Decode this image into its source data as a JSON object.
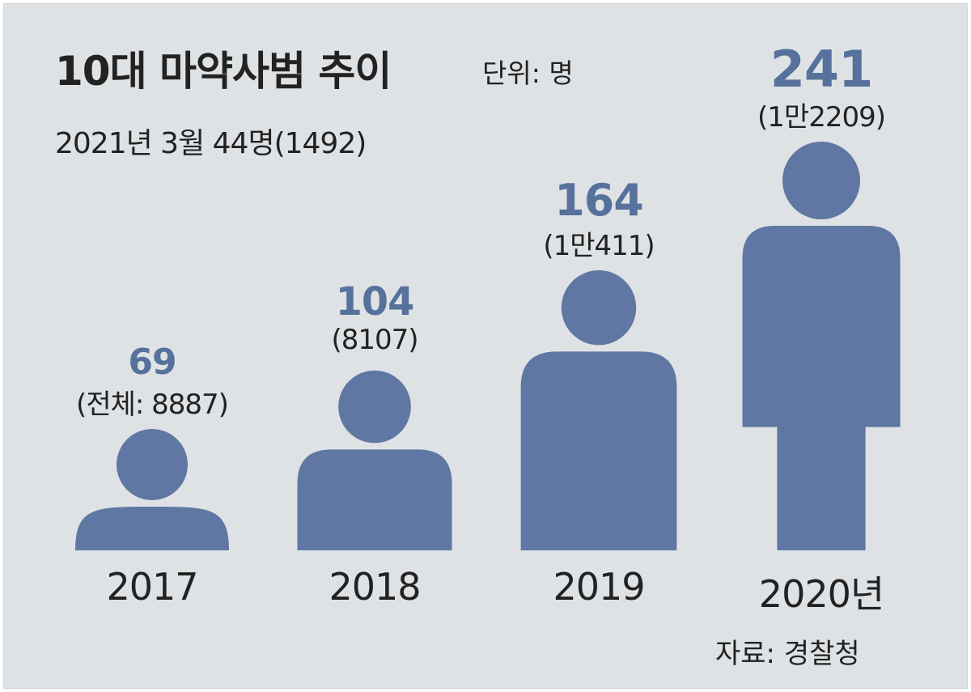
{
  "title": "10대 마약사범 추이",
  "unit": "단위: 명",
  "subtitle": "2021년 3월 44명(1492)",
  "source": "자료: 경찰청",
  "colors": {
    "figure": "#5f77a2",
    "value": "#56719b",
    "background": "#dfe2e5",
    "text": "#222222"
  },
  "chart_data": {
    "type": "bar",
    "categories": [
      "2017",
      "2018",
      "2019",
      "2020년"
    ],
    "series": [
      {
        "values": [
          69,
          104,
          164,
          241
        ]
      }
    ],
    "value_labels": [
      "69",
      "104",
      "164",
      "241"
    ],
    "total_labels": [
      "(전체: 8887)",
      "(8107)",
      "(1만411)",
      "(1만2209)"
    ],
    "totals": [
      8887,
      8107,
      10411,
      12209
    ],
    "title": "10대 마약사범 추이",
    "ylabel": "",
    "xlabel": "",
    "mark": "person-icon"
  }
}
